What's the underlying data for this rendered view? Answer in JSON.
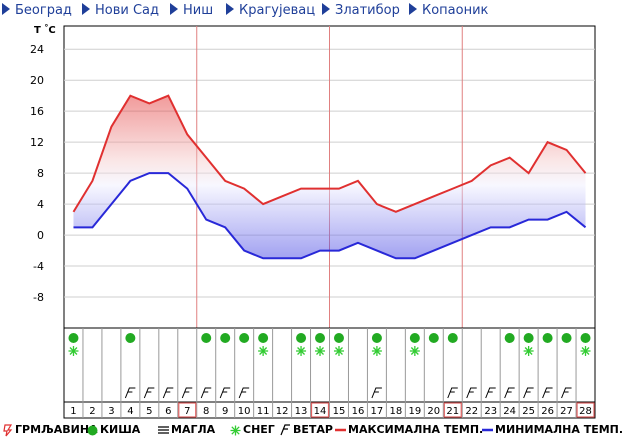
{
  "nav": [
    {
      "label": "Београд"
    },
    {
      "label": "Нови Сад"
    },
    {
      "label": "Ниш"
    },
    {
      "label": "Крагујевац"
    },
    {
      "label": "Златибор"
    },
    {
      "label": "Копаоник"
    }
  ],
  "colors": {
    "nav_link": "#1f3f99",
    "max_line": "#e03030",
    "min_line": "#2828d8",
    "grid": "#cfcfcf",
    "divider": "#e08080",
    "rain": "#22aa22",
    "snow": "#33cc33",
    "highlight_box": "#e06060"
  },
  "chart_data": {
    "type": "line",
    "ylabel": "T °C",
    "y_ticks": [
      24,
      20,
      16,
      12,
      8,
      4,
      0,
      -4,
      -8
    ],
    "ylim": [
      -12,
      27
    ],
    "grid": true,
    "x": [
      "1",
      "2",
      "3",
      "4",
      "5",
      "6",
      "7",
      "8",
      "9",
      "10",
      "11",
      "12",
      "13",
      "14",
      "15",
      "16",
      "17",
      "18",
      "19",
      "20",
      "21",
      "22",
      "23",
      "24",
      "25",
      "26",
      "27",
      "28"
    ],
    "highlighted_days": [
      "7",
      "14",
      "21",
      "28"
    ],
    "series": [
      {
        "name": "МАКСИМАЛНА ТЕМП.",
        "color": "#e03030",
        "values": [
          3,
          7,
          14,
          18,
          17,
          18,
          13,
          10,
          7,
          6,
          4,
          5,
          6,
          6,
          6,
          7,
          4,
          3,
          4,
          5,
          6,
          7,
          9,
          10,
          8,
          12,
          11,
          8
        ]
      },
      {
        "name": "МИНИМАЛНА ТЕМП.",
        "color": "#2828d8",
        "values": [
          1,
          1,
          4,
          7,
          8,
          8,
          6,
          2,
          1,
          -2,
          -3,
          -3,
          -3,
          -2,
          -2,
          -1,
          -2,
          -3,
          -3,
          -2,
          -1,
          0,
          1,
          1,
          2,
          2,
          3,
          1
        ]
      }
    ],
    "weather": {
      "rain": [
        "1",
        "4",
        "8",
        "9",
        "10",
        "11",
        "13",
        "14",
        "15",
        "17",
        "19",
        "20",
        "21",
        "24",
        "25",
        "26",
        "27",
        "28"
      ],
      "snow": [
        "1",
        "11",
        "13",
        "14",
        "15",
        "17",
        "19",
        "25",
        "28"
      ],
      "wind": [
        "4",
        "5",
        "6",
        "7",
        "8",
        "9",
        "10",
        "17",
        "21",
        "22",
        "23",
        "24",
        "25",
        "26",
        "27"
      ]
    }
  },
  "legend": [
    {
      "key": "storm",
      "label": "ГРМЉАВИНА",
      "color": "#e03030"
    },
    {
      "key": "rain",
      "label": "КИША",
      "color": "#22aa22"
    },
    {
      "key": "fog",
      "label": "МАГЛА",
      "color": "#000000"
    },
    {
      "key": "snow",
      "label": "СНЕГ",
      "color": "#33cc33"
    },
    {
      "key": "wind",
      "label": "ВЕТАР",
      "color": "#000000"
    },
    {
      "key": "max",
      "label": "МАКСИМАЛНА ТЕМП.",
      "color": "#e03030"
    },
    {
      "key": "min",
      "label": "МИНИМАЛНА ТЕМП.",
      "color": "#2828d8"
    }
  ]
}
